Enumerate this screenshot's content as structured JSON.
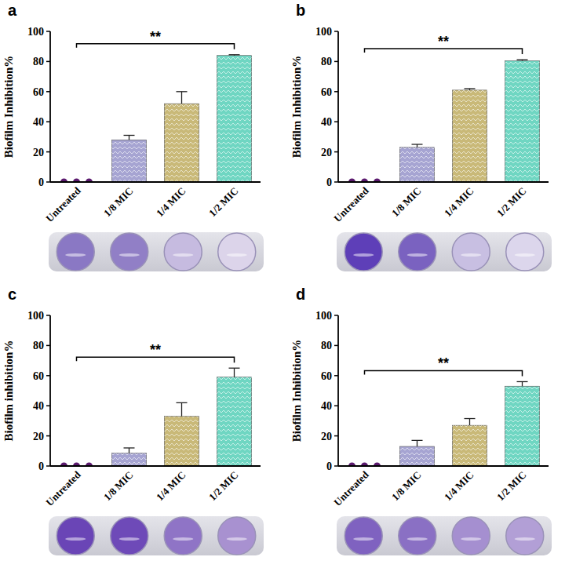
{
  "chart_data": [
    {
      "type": "bar",
      "title": "a",
      "y_label": "Biofilm Inhibition%",
      "categories": [
        "Untreated",
        "1/8 MIC",
        "1/4 MIC",
        "1/2 MIC"
      ],
      "values": [
        0,
        28,
        52,
        84
      ],
      "errors": [
        0,
        3,
        8,
        0.5
      ],
      "colors": [
        "#5b1a6e",
        "#a6a4d2",
        "#c9b978",
        "#6fd6c2"
      ],
      "ylim": [
        0,
        100
      ],
      "yticks": [
        0,
        20,
        40,
        60,
        80,
        100
      ],
      "annotation": "**"
    },
    {
      "type": "bar",
      "title": "b",
      "y_label": "Biofilm Inhibition%",
      "categories": [
        "Untreated",
        "1/8 MIC",
        "1/4 MIC",
        "1/2 MIC"
      ],
      "values": [
        0,
        23,
        61,
        80.5
      ],
      "errors": [
        0,
        2,
        1,
        0.7
      ],
      "colors": [
        "#5b1a6e",
        "#a6a4d2",
        "#c9b978",
        "#6fd6c2"
      ],
      "ylim": [
        0,
        100
      ],
      "yticks": [
        0,
        20,
        40,
        60,
        80,
        100
      ],
      "annotation": "**"
    },
    {
      "type": "bar",
      "title": "c",
      "y_label": "Biofilm inhibition%",
      "categories": [
        "Untreated",
        "1/8 MIC",
        "1/4 MIC",
        "1/2 MIC"
      ],
      "values": [
        0,
        8.5,
        33,
        59
      ],
      "errors": [
        0,
        3.5,
        9,
        6
      ],
      "colors": [
        "#5b1a6e",
        "#a6a4d2",
        "#c9b978",
        "#6fd6c2"
      ],
      "ylim": [
        0,
        100
      ],
      "yticks": [
        0,
        20,
        40,
        60,
        80,
        100
      ],
      "annotation": "**"
    },
    {
      "type": "bar",
      "title": "d",
      "y_label": "Biofilm Inhibition%",
      "categories": [
        "Untreated",
        "1/8 MIC",
        "1/4 MIC",
        "1/2 MIC"
      ],
      "values": [
        0,
        13,
        27,
        53
      ],
      "errors": [
        0,
        4,
        4.5,
        3
      ],
      "colors": [
        "#5b1a6e",
        "#a6a4d2",
        "#c9b978",
        "#6fd6c2"
      ],
      "ylim": [
        0,
        100
      ],
      "yticks": [
        0,
        20,
        40,
        60,
        80,
        100
      ],
      "annotation": "**"
    }
  ]
}
